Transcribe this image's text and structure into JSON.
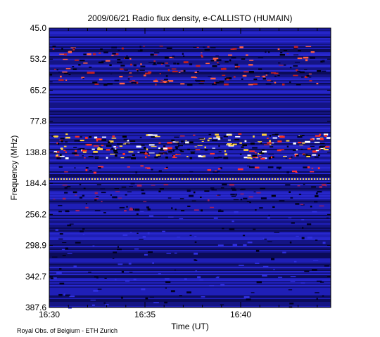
{
  "chart_data": {
    "type": "spectrogram",
    "title": "2009/06/21  Radio flux density, e-CALLISTO (HUMAIN)",
    "x_label": "Time (UT)",
    "y_label": "Frequency (MHz)",
    "xticks": [
      "16:30",
      "16:35",
      "16:40"
    ],
    "yticks": [
      "45.0",
      "53.2",
      "65.2",
      "77.8",
      "138.8",
      "184.4",
      "256.2",
      "298.9",
      "342.7",
      "387.6"
    ],
    "footer": "Royal Obs. of Belgium - ETH Zurich"
  }
}
